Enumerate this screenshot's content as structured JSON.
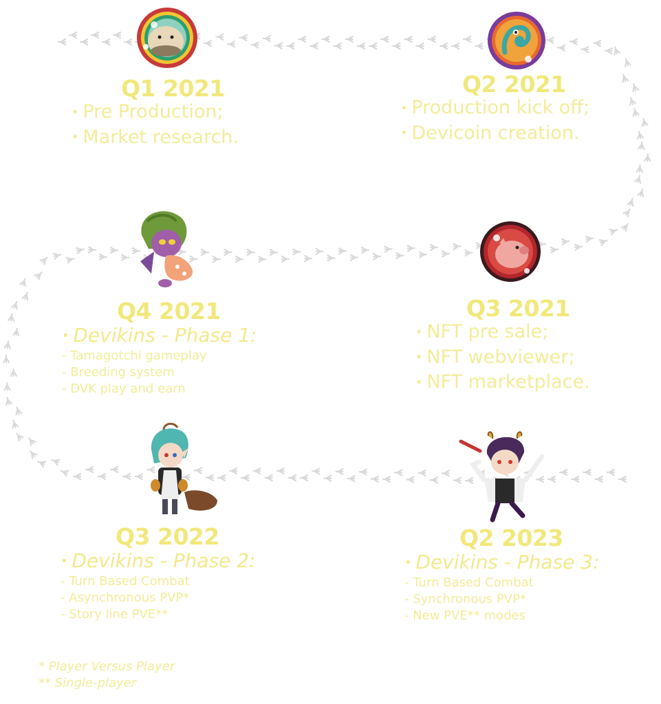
{
  "milestones": {
    "q1_2021": {
      "quarter": "Q1 2021",
      "items": [
        "Pre Production;",
        "Market research."
      ]
    },
    "q2_2021": {
      "quarter": "Q2 2021",
      "items": [
        "Production kick off;",
        "Devicoin creation."
      ]
    },
    "q4_2021": {
      "quarter": "Q4 2021",
      "phase": "Devikins - Phase 1:",
      "details": [
        "Tamagotchi gameplay",
        "Breeding system",
        "DVK play and earn"
      ]
    },
    "q3_2021": {
      "quarter": "Q3 2021",
      "items": [
        "NFT pre sale;",
        "NFT webviewer;",
        "NFT marketplace."
      ]
    },
    "q3_2022": {
      "quarter": "Q3 2022",
      "phase": "Devikins - Phase 2:",
      "details": [
        "Turn Based Combat",
        "Asynchronous PVP*",
        "Story line PVE**"
      ]
    },
    "q2_2023": {
      "quarter": "Q2 2023",
      "phase": "Devikins - Phase 3:",
      "details": [
        "Turn Based Combat",
        "Synchronous PVP*",
        "New PVE** modes"
      ]
    }
  },
  "footnotes": [
    "* Player Versus Player",
    "** Single-player"
  ],
  "colors": {
    "text": "#f3ec98",
    "heading": "#f1e87c",
    "footprints": "#d9d9d9"
  },
  "icons": {
    "q1_2021": "hamster-badge-icon",
    "q2_2021": "chameleon-badge-icon",
    "q4_2021": "devikin-green-hair-character-icon",
    "q3_2021": "pig-badge-icon",
    "q3_2022": "devikin-teal-hair-character-icon",
    "q2_2023": "devikin-purple-hair-character-icon"
  }
}
